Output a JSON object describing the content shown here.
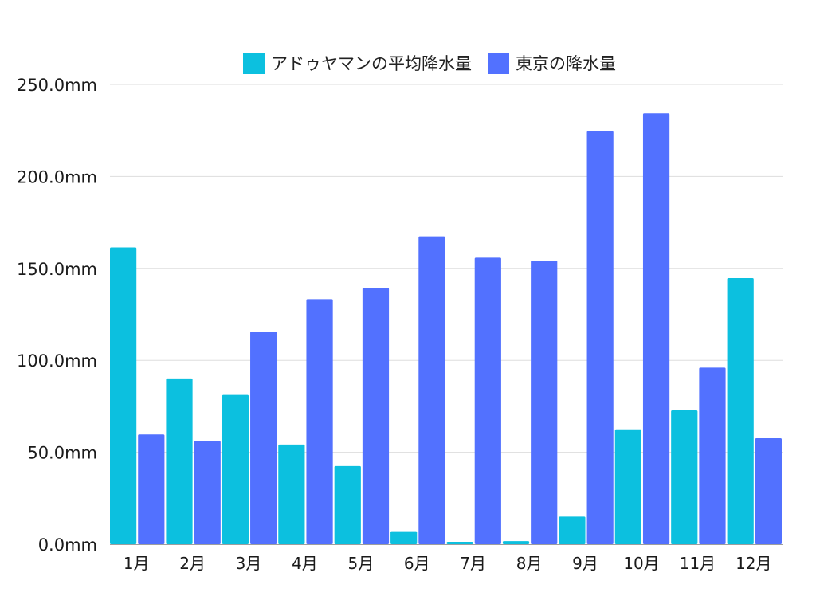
{
  "chart_data": {
    "type": "bar",
    "title": "",
    "xlabel": "",
    "ylabel": "",
    "categories": [
      "1月",
      "2月",
      "3月",
      "4月",
      "5月",
      "6月",
      "7月",
      "8月",
      "9月",
      "10月",
      "11月",
      "12月"
    ],
    "series": [
      {
        "name": "アドゥヤマンの平均降水量",
        "color": "#0cc0df",
        "values": [
          161.4,
          90.2,
          81.2,
          54.2,
          42.5,
          7.1,
          1.3,
          1.7,
          15.0,
          62.5,
          72.8,
          144.7
        ]
      },
      {
        "name": "東京の降水量",
        "color": "#5271ff",
        "values": [
          59.7,
          56.1,
          115.7,
          133.3,
          139.4,
          167.4,
          155.8,
          154.2,
          224.6,
          234.3,
          96.0,
          57.6
        ]
      }
    ],
    "ylim": [
      0,
      250
    ],
    "yticks": [
      0,
      50,
      100,
      150,
      200,
      250
    ],
    "ytick_labels": [
      "0.0mm",
      "50.0mm",
      "100.0mm",
      "150.0mm",
      "200.0mm",
      "250.0mm"
    ],
    "grid": true,
    "legend_position": "top-center"
  }
}
